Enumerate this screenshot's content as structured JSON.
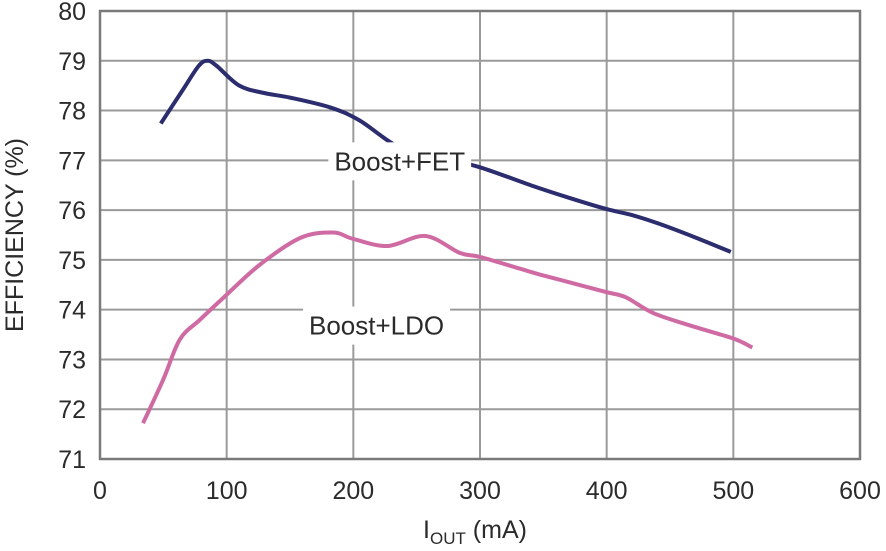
{
  "chart_data": {
    "type": "line",
    "title": "",
    "xlabel": "I",
    "xlabel_sub": "OUT",
    "xlabel_unit": " (mA)",
    "ylabel": "EFFICIENCY (%)",
    "xlim": [
      0,
      600
    ],
    "ylim": [
      71,
      80
    ],
    "xticks": [
      0,
      100,
      200,
      300,
      400,
      500,
      600
    ],
    "yticks": [
      71,
      72,
      73,
      74,
      75,
      76,
      77,
      78,
      79,
      80
    ],
    "grid": true,
    "legend": "inline labels",
    "series": [
      {
        "name": "Boost+FET",
        "color": "#2b2d6e",
        "label_anchor": [
          185,
          77.0
        ],
        "x": [
          48,
          65,
          78,
          85,
          92,
          110,
          130,
          150,
          182,
          205,
          237,
          270,
          300,
          340,
          370,
          400,
          420,
          442,
          470,
          498
        ],
        "y": [
          77.74,
          78.4,
          78.9,
          79.0,
          78.9,
          78.5,
          78.35,
          78.26,
          78.06,
          77.8,
          77.25,
          77.05,
          76.86,
          76.5,
          76.25,
          76.02,
          75.9,
          75.72,
          75.45,
          75.16
        ]
      },
      {
        "name": "Boost+LDO",
        "color": "#cf6aa3",
        "label_anchor": [
          165,
          73.7
        ],
        "x": [
          34,
          50,
          63,
          79,
          100,
          126,
          158,
          184,
          200,
          227,
          257,
          284,
          300,
          332,
          348,
          375,
          400,
          415,
          437,
          470,
          500,
          515
        ],
        "y": [
          71.72,
          72.6,
          73.4,
          73.8,
          74.3,
          74.9,
          75.44,
          75.55,
          75.42,
          75.28,
          75.48,
          75.14,
          75.06,
          74.82,
          74.7,
          74.52,
          74.35,
          74.25,
          73.93,
          73.65,
          73.42,
          73.24
        ]
      }
    ]
  }
}
